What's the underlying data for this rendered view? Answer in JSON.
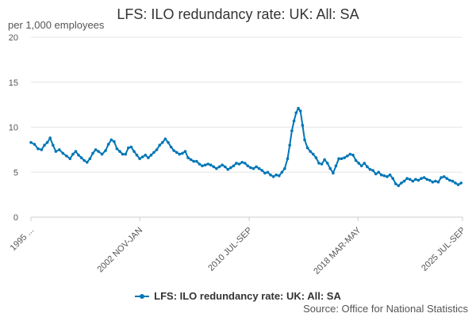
{
  "chart_data": {
    "type": "line",
    "title": "LFS: ILO redundancy rate: UK: All: SA",
    "ylabel": "per 1,000 employees",
    "xlabel": "",
    "ylim": [
      0,
      20
    ],
    "yticks": [
      0,
      5,
      10,
      15,
      20
    ],
    "xticks": [
      {
        "label": "1995 ...",
        "year": 1995.25
      },
      {
        "label": "2002 NOV-JAN",
        "year": 2002.9
      },
      {
        "label": "2010 JUL-SEP",
        "year": 2010.6
      },
      {
        "label": "2018 MAR-MAY",
        "year": 2018.25
      },
      {
        "label": "2025 JUL-SEP",
        "year": 2025.6
      }
    ],
    "xlim": [
      1995.25,
      2025.6
    ],
    "grid": "horizontal",
    "legend_position": "bottom",
    "series": [
      {
        "name": "LFS: ILO redundancy rate: UK: All: SA",
        "color": "#0076b6",
        "points": [
          [
            1995.25,
            8.3
          ],
          [
            1995.5,
            8.1
          ],
          [
            1995.75,
            7.6
          ],
          [
            1996.0,
            7.5
          ],
          [
            1996.2,
            8.0
          ],
          [
            1996.4,
            8.3
          ],
          [
            1996.6,
            8.8
          ],
          [
            1996.8,
            8.0
          ],
          [
            1997.0,
            7.3
          ],
          [
            1997.25,
            7.5
          ],
          [
            1997.5,
            7.1
          ],
          [
            1997.75,
            6.8
          ],
          [
            1998.0,
            6.5
          ],
          [
            1998.2,
            7.0
          ],
          [
            1998.4,
            7.3
          ],
          [
            1998.6,
            6.9
          ],
          [
            1998.8,
            6.6
          ],
          [
            1999.0,
            6.3
          ],
          [
            1999.2,
            6.1
          ],
          [
            1999.4,
            6.5
          ],
          [
            1999.6,
            7.1
          ],
          [
            1999.8,
            7.5
          ],
          [
            2000.0,
            7.3
          ],
          [
            2000.25,
            7.0
          ],
          [
            2000.5,
            7.4
          ],
          [
            2000.7,
            8.1
          ],
          [
            2000.9,
            8.6
          ],
          [
            2001.1,
            8.4
          ],
          [
            2001.3,
            7.6
          ],
          [
            2001.5,
            7.3
          ],
          [
            2001.7,
            7.0
          ],
          [
            2001.9,
            7.0
          ],
          [
            2002.1,
            7.7
          ],
          [
            2002.3,
            7.8
          ],
          [
            2002.5,
            7.3
          ],
          [
            2002.7,
            6.9
          ],
          [
            2002.9,
            6.5
          ],
          [
            2003.1,
            6.7
          ],
          [
            2003.3,
            6.9
          ],
          [
            2003.5,
            6.6
          ],
          [
            2003.7,
            6.9
          ],
          [
            2003.9,
            7.2
          ],
          [
            2004.1,
            7.5
          ],
          [
            2004.3,
            8.0
          ],
          [
            2004.5,
            8.3
          ],
          [
            2004.7,
            8.7
          ],
          [
            2004.9,
            8.3
          ],
          [
            2005.1,
            7.8
          ],
          [
            2005.3,
            7.4
          ],
          [
            2005.5,
            7.2
          ],
          [
            2005.7,
            7.0
          ],
          [
            2005.9,
            7.1
          ],
          [
            2006.1,
            7.3
          ],
          [
            2006.3,
            6.6
          ],
          [
            2006.5,
            6.4
          ],
          [
            2006.7,
            6.2
          ],
          [
            2006.9,
            6.2
          ],
          [
            2007.1,
            5.9
          ],
          [
            2007.3,
            5.7
          ],
          [
            2007.5,
            5.8
          ],
          [
            2007.7,
            5.9
          ],
          [
            2007.9,
            5.8
          ],
          [
            2008.1,
            5.6
          ],
          [
            2008.3,
            5.4
          ],
          [
            2008.5,
            5.6
          ],
          [
            2008.7,
            5.8
          ],
          [
            2008.9,
            5.6
          ],
          [
            2009.1,
            5.3
          ],
          [
            2009.3,
            5.5
          ],
          [
            2009.5,
            5.7
          ],
          [
            2009.7,
            6.0
          ],
          [
            2009.9,
            5.9
          ],
          [
            2010.1,
            6.1
          ],
          [
            2010.3,
            6.0
          ],
          [
            2010.5,
            5.7
          ],
          [
            2010.7,
            5.5
          ],
          [
            2010.9,
            5.4
          ],
          [
            2011.1,
            5.6
          ],
          [
            2011.3,
            5.4
          ],
          [
            2011.5,
            5.2
          ],
          [
            2011.7,
            4.9
          ],
          [
            2011.9,
            5.0
          ],
          [
            2012.1,
            4.7
          ],
          [
            2012.3,
            4.5
          ],
          [
            2012.5,
            4.7
          ],
          [
            2012.7,
            4.6
          ],
          [
            2012.9,
            5.0
          ],
          [
            2013.1,
            5.4
          ],
          [
            2013.3,
            6.5
          ],
          [
            2013.45,
            8.0
          ],
          [
            2013.6,
            9.6
          ],
          [
            2013.75,
            10.7
          ],
          [
            2013.9,
            11.6
          ],
          [
            2014.05,
            12.1
          ],
          [
            2014.2,
            11.8
          ],
          [
            2014.35,
            10.2
          ],
          [
            2014.5,
            8.6
          ],
          [
            2014.7,
            7.7
          ],
          [
            2014.9,
            7.3
          ],
          [
            2015.1,
            7.0
          ],
          [
            2015.3,
            6.6
          ],
          [
            2015.5,
            6.0
          ],
          [
            2015.7,
            5.9
          ],
          [
            2015.9,
            6.4
          ],
          [
            2016.1,
            6.0
          ],
          [
            2016.3,
            5.4
          ],
          [
            2016.5,
            4.9
          ],
          [
            2016.7,
            5.7
          ],
          [
            2016.9,
            6.5
          ],
          [
            2017.1,
            6.5
          ],
          [
            2017.3,
            6.6
          ],
          [
            2017.5,
            6.8
          ],
          [
            2017.7,
            7.0
          ],
          [
            2017.9,
            6.9
          ],
          [
            2018.1,
            6.3
          ],
          [
            2018.3,
            6.0
          ],
          [
            2018.5,
            5.7
          ],
          [
            2018.7,
            6.0
          ],
          [
            2018.9,
            5.6
          ],
          [
            2019.1,
            5.3
          ],
          [
            2019.3,
            5.2
          ],
          [
            2019.5,
            4.8
          ],
          [
            2019.7,
            5.0
          ],
          [
            2019.9,
            4.7
          ],
          [
            2020.1,
            4.6
          ],
          [
            2020.3,
            4.5
          ],
          [
            2020.5,
            4.7
          ],
          [
            2020.7,
            4.3
          ],
          [
            2020.9,
            3.7
          ],
          [
            2021.1,
            3.5
          ],
          [
            2021.3,
            3.8
          ],
          [
            2021.5,
            4.0
          ],
          [
            2021.7,
            4.3
          ],
          [
            2021.9,
            4.2
          ],
          [
            2022.1,
            4.0
          ],
          [
            2022.3,
            4.2
          ],
          [
            2022.5,
            4.1
          ],
          [
            2022.7,
            4.3
          ],
          [
            2022.9,
            4.4
          ],
          [
            2023.1,
            4.2
          ],
          [
            2023.3,
            4.1
          ],
          [
            2023.5,
            3.9
          ],
          [
            2023.7,
            4.0
          ],
          [
            2023.9,
            3.9
          ],
          [
            2024.1,
            4.4
          ],
          [
            2024.3,
            4.5
          ],
          [
            2024.5,
            4.3
          ],
          [
            2024.7,
            4.1
          ],
          [
            2024.9,
            4.0
          ],
          [
            2025.1,
            3.8
          ],
          [
            2025.3,
            3.6
          ],
          [
            2025.5,
            3.8
          ]
        ]
      }
    ]
  },
  "legend": {
    "label": "LFS: ILO redundancy rate: UK: All: SA"
  },
  "source": "Source: Office for National Statistics"
}
